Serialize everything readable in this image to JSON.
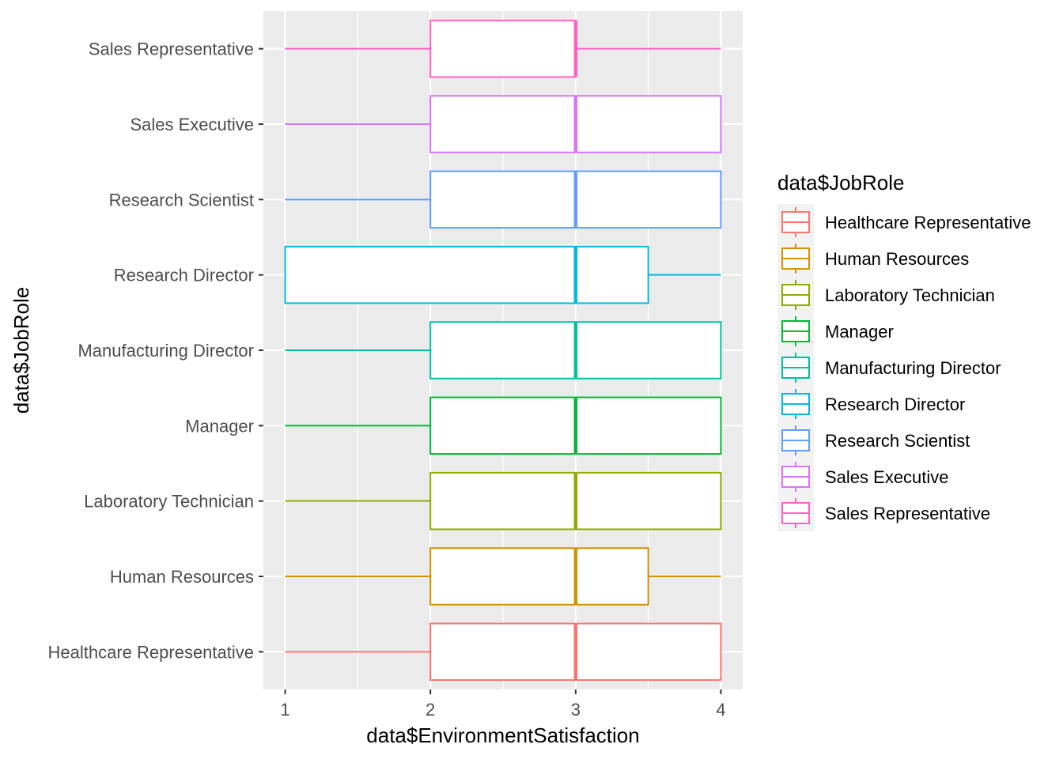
{
  "chart_data": {
    "type": "boxplot",
    "orientation": "horizontal",
    "xlabel": "data$EnvironmentSatisfaction",
    "ylabel": "data$JobRole",
    "xlim": [
      0.85,
      4.15
    ],
    "x_ticks": [
      1,
      2,
      3,
      4
    ],
    "grid": true,
    "legend": {
      "title": "data$JobRole",
      "position": "right"
    },
    "categories": [
      "Healthcare Representative",
      "Human Resources",
      "Laboratory Technician",
      "Manager",
      "Manufacturing Director",
      "Research Director",
      "Research Scientist",
      "Sales Executive",
      "Sales Representative"
    ],
    "series": [
      {
        "name": "Healthcare Representative",
        "color": "#F8766D",
        "min": 1,
        "q1": 2,
        "median": 3,
        "q3": 4,
        "max": 4
      },
      {
        "name": "Human Resources",
        "color": "#D39200",
        "min": 1,
        "q1": 2,
        "median": 3,
        "q3": 3.5,
        "max": 4
      },
      {
        "name": "Laboratory Technician",
        "color": "#93AA00",
        "min": 1,
        "q1": 2,
        "median": 3,
        "q3": 4,
        "max": 4
      },
      {
        "name": "Manager",
        "color": "#00BA38",
        "min": 1,
        "q1": 2,
        "median": 3,
        "q3": 4,
        "max": 4
      },
      {
        "name": "Manufacturing Director",
        "color": "#00C19F",
        "min": 1,
        "q1": 2,
        "median": 3,
        "q3": 4,
        "max": 4
      },
      {
        "name": "Research Director",
        "color": "#00B9E3",
        "min": 1,
        "q1": 1,
        "median": 3,
        "q3": 3.5,
        "max": 4
      },
      {
        "name": "Research Scientist",
        "color": "#619CFF",
        "min": 1,
        "q1": 2,
        "median": 3,
        "q3": 4,
        "max": 4
      },
      {
        "name": "Sales Executive",
        "color": "#DB72FB",
        "min": 1,
        "q1": 2,
        "median": 3,
        "q3": 4,
        "max": 4
      },
      {
        "name": "Sales Representative",
        "color": "#FF61C3",
        "min": 1,
        "q1": 2,
        "median": 3,
        "q3": 3,
        "max": 4
      }
    ]
  }
}
